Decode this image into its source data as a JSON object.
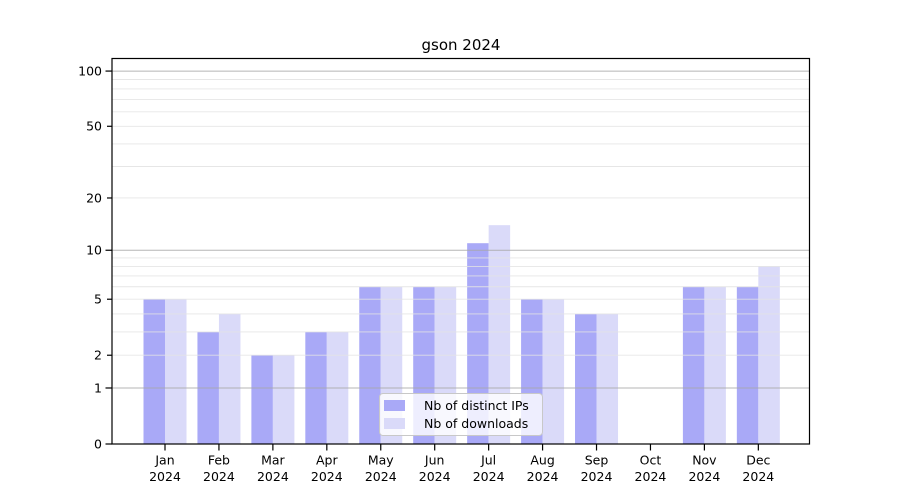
{
  "chart_data": {
    "type": "bar",
    "title": "gson 2024",
    "categories": [
      "Jan",
      "Feb",
      "Mar",
      "Apr",
      "May",
      "Jun",
      "Jul",
      "Aug",
      "Sep",
      "Oct",
      "Nov",
      "Dec"
    ],
    "x_tick_second_line": "2024",
    "series": [
      {
        "name": "Nb of distinct IPs",
        "color": "#a9a9f7",
        "values": [
          5,
          3,
          2,
          3,
          6,
          6,
          11,
          5,
          4,
          0,
          6,
          6
        ]
      },
      {
        "name": "Nb of downloads",
        "color": "#dadaf9",
        "values": [
          5,
          4,
          2,
          3,
          6,
          6,
          14,
          5,
          4,
          0,
          6,
          8
        ]
      }
    ],
    "xlabel": "",
    "ylabel": "",
    "y_axis": {
      "scale": "log1p",
      "tick_values": [
        0,
        1,
        2,
        5,
        10,
        20,
        50,
        100
      ],
      "range": [
        0,
        117
      ],
      "major_grid_values": [
        1,
        10,
        100
      ],
      "minor_grid_values": [
        2,
        3,
        4,
        5,
        6,
        7,
        8,
        9,
        20,
        30,
        40,
        50,
        60,
        70,
        80,
        90
      ]
    },
    "legend": {
      "position": "lower center"
    },
    "grid": true
  },
  "colors": {
    "background": "#ffffff",
    "axis": "#000000",
    "grid_major": "#a8a8a8",
    "grid_minor": "#e3e3e3",
    "text": "#000000"
  }
}
